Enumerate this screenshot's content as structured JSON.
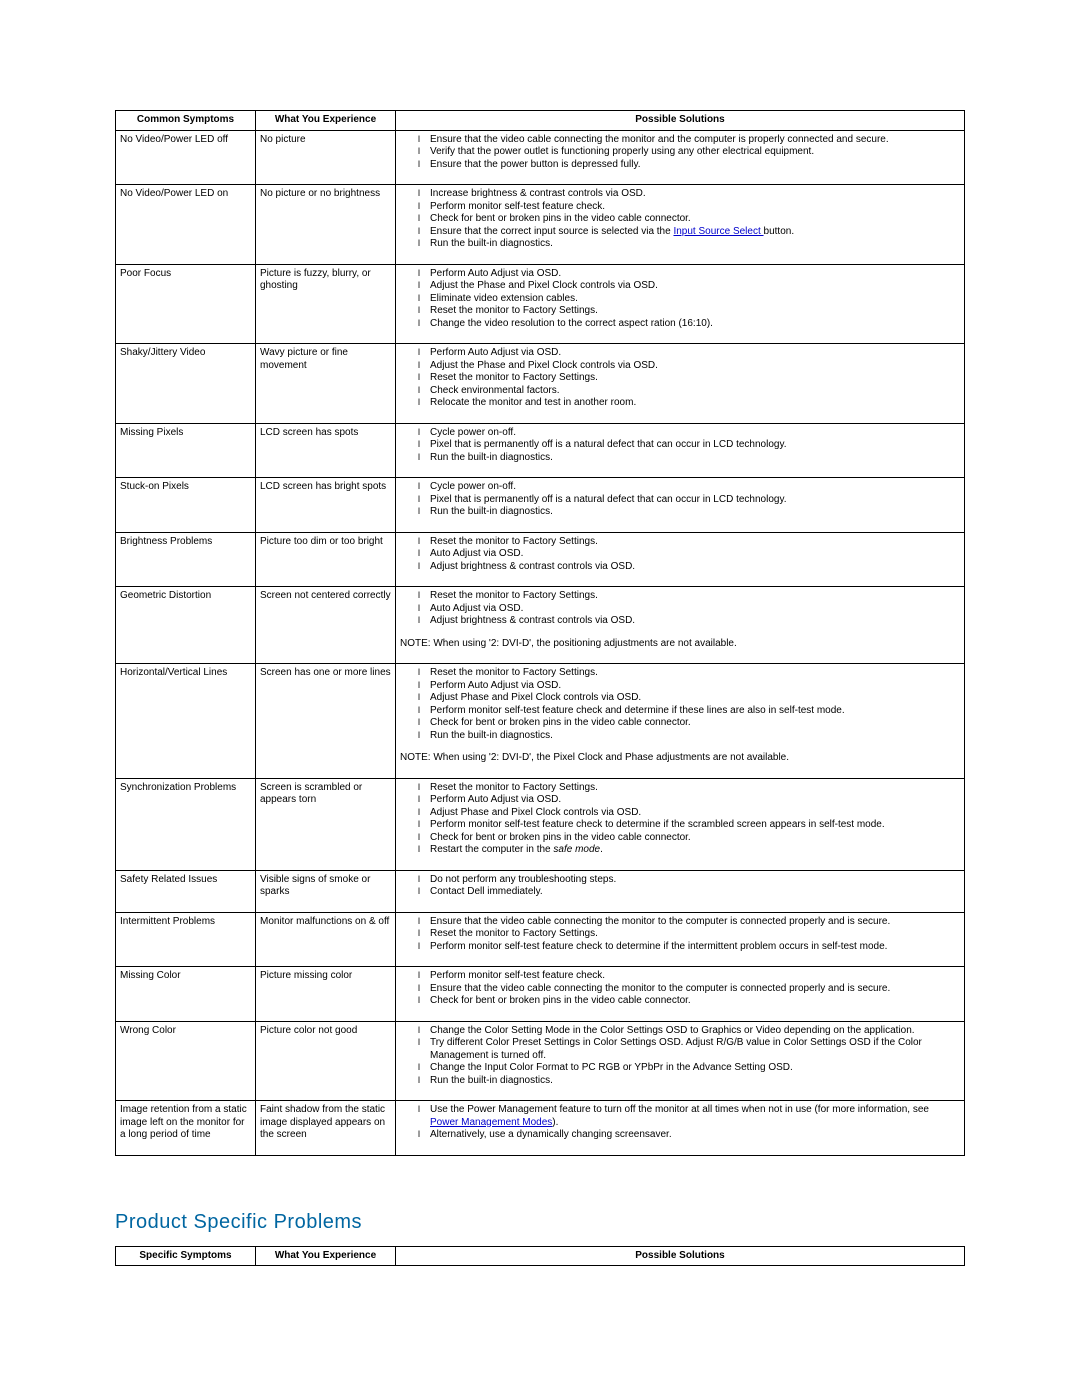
{
  "table1": {
    "headers": [
      "Common Symptoms",
      "What You Experience",
      "Possible Solutions"
    ],
    "link_input_source": "Input Source Select ",
    "link_power_mgmt": "Power Management Modes",
    "rows": [
      {
        "symptom": "No Video/Power LED off",
        "experience": "No picture",
        "solutions": [
          "Ensure that the video cable connecting the monitor and the computer is properly connected and secure.",
          "Verify that the power outlet is functioning properly using any other electrical equipment.",
          "Ensure that the power button is depressed fully."
        ]
      },
      {
        "symptom": "No Video/Power LED on",
        "experience": "No picture or no brightness",
        "solutions": [
          "Increase brightness & contrast controls via OSD.",
          "Perform monitor self-test feature check.",
          "Check for bent or broken pins in the video cable connector.",
          {
            "prefix": "Ensure that the correct input source is selected via the ",
            "link": "link_input_source",
            "suffix": "button."
          },
          "Run the built-in diagnostics."
        ]
      },
      {
        "symptom": "Poor Focus",
        "experience": "Picture is fuzzy, blurry, or ghosting",
        "solutions": [
          "Perform Auto Adjust via OSD.",
          "Adjust the Phase and Pixel Clock controls via OSD.",
          "Eliminate video extension cables.",
          "Reset the monitor to Factory Settings.",
          "Change the video resolution to the correct aspect ration (16:10)."
        ]
      },
      {
        "symptom": "Shaky/Jittery Video",
        "experience": "Wavy picture or fine movement",
        "solutions": [
          "Perform Auto Adjust via OSD.",
          "Adjust the Phase and Pixel Clock controls via OSD.",
          "Reset the monitor to Factory Settings.",
          "Check environmental factors.",
          "Relocate the monitor and test in another room."
        ]
      },
      {
        "symptom": "Missing Pixels",
        "experience": "LCD screen has spots",
        "solutions": [
          "Cycle power on-off.",
          "Pixel that is permanently off is a natural defect that can occur in LCD technology.",
          "Run the built-in diagnostics."
        ]
      },
      {
        "symptom": "Stuck-on Pixels",
        "experience": "LCD screen has bright spots",
        "solutions": [
          "Cycle power on-off.",
          "Pixel that is permanently off is a natural defect that can occur in LCD technology.",
          "Run the built-in diagnostics."
        ]
      },
      {
        "symptom": "Brightness Problems",
        "experience": "Picture too dim or too bright",
        "solutions": [
          "Reset the monitor to Factory Settings.",
          "Auto Adjust via OSD.",
          "Adjust brightness & contrast controls via OSD."
        ]
      },
      {
        "symptom": "Geometric Distortion",
        "experience": "Screen not centered correctly",
        "solutions": [
          "Reset the monitor to Factory Settings.",
          "Auto Adjust via OSD.",
          "Adjust brightness & contrast controls via OSD."
        ],
        "note": "NOTE: When using '2: DVI-D', the positioning adjustments are not available."
      },
      {
        "symptom": "Horizontal/Vertical Lines",
        "experience": "Screen has one or more lines",
        "solutions": [
          "Reset the monitor to Factory Settings.",
          "Perform Auto Adjust via OSD.",
          "Adjust Phase and Pixel Clock controls via OSD.",
          "Perform monitor self-test feature check and determine if these lines are also in self-test mode.",
          "Check for bent or broken pins in the video cable connector.",
          "Run the built-in diagnostics."
        ],
        "note": "NOTE: When using '2: DVI-D', the Pixel Clock and Phase adjustments are not available."
      },
      {
        "symptom": "Synchronization Problems",
        "experience": "Screen is scrambled or appears torn",
        "solutions": [
          "Reset the monitor to Factory Settings.",
          "Perform Auto Adjust via OSD.",
          "Adjust Phase and Pixel Clock controls via OSD.",
          "Perform monitor self-test feature check to determine if the scrambled screen appears in self-test mode.",
          "Check for bent or broken pins in the video cable connector.",
          {
            "prefix": "Restart the computer in the ",
            "italic": "safe mode",
            "suffix": "."
          }
        ]
      },
      {
        "symptom": "Safety Related Issues",
        "experience": "Visible signs of smoke or sparks",
        "solutions": [
          "Do not perform any troubleshooting steps.",
          "Contact Dell immediately."
        ]
      },
      {
        "symptom": "Intermittent Problems",
        "experience": "Monitor malfunctions on & off",
        "solutions": [
          "Ensure that the video cable connecting the monitor to the computer is connected properly and is secure.",
          "Reset the monitor to Factory Settings.",
          "Perform monitor self-test feature check to determine if the intermittent problem occurs in self-test mode."
        ]
      },
      {
        "symptom": "Missing Color",
        "experience": "Picture missing color",
        "solutions": [
          "Perform monitor self-test feature check.",
          "Ensure that the video cable connecting the monitor to the computer is connected properly and is secure.",
          "Check for bent or broken pins in the video cable connector."
        ]
      },
      {
        "symptom": "Wrong Color",
        "experience": "Picture color not good",
        "solutions": [
          "Change the Color Setting Mode in the Color Settings OSD to Graphics or Video depending on the application.",
          "Try different Color Preset Settings in Color Settings OSD. Adjust R/G/B value in Color Settings OSD if the Color Management is turned off.",
          "Change the Input Color Format to PC RGB or YPbPr in the Advance Setting OSD.",
          "Run the built-in diagnostics."
        ]
      },
      {
        "symptom": "Image retention from a static image left on the monitor for a long period of time",
        "experience": "Faint shadow from the static image displayed appears on the screen",
        "solutions": [
          {
            "prefix": "Use the Power Management feature to turn off the monitor at all times when not in use (for more information, see ",
            "link": "link_power_mgmt",
            "suffix": ")."
          },
          "Alternatively, use a dynamically changing screensaver."
        ]
      }
    ]
  },
  "section2_title": "Product Specific Problems",
  "table2": {
    "headers": [
      "Specific Symptoms",
      "What You Experience",
      "Possible Solutions"
    ]
  }
}
